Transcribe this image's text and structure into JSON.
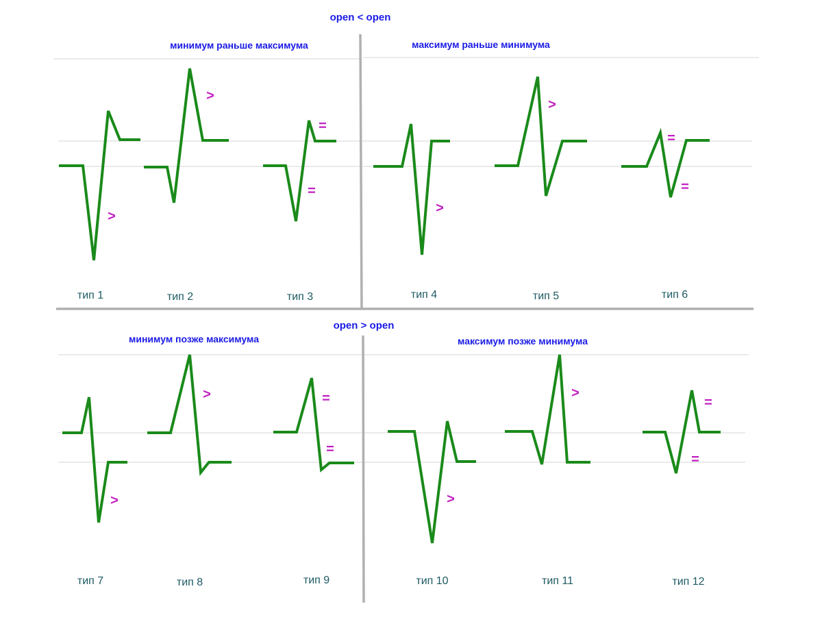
{
  "headers": {
    "top": "open < open",
    "bottom": "open > open"
  },
  "quadrants": {
    "top_left": "минимум раньше максимума",
    "top_right": "максимум раньше минимума",
    "bottom_left": "минимум позже максимума",
    "bottom_right": "максимум позже  минимума"
  },
  "types": [
    {
      "label": "тип 1",
      "marks": [
        ">"
      ]
    },
    {
      "label": "тип 2",
      "marks": [
        ">"
      ]
    },
    {
      "label": "тип 3",
      "marks": [
        "=",
        "="
      ]
    },
    {
      "label": "тип 4",
      "marks": [
        ">"
      ]
    },
    {
      "label": "тип 5",
      "marks": [
        ">"
      ]
    },
    {
      "label": "тип 6",
      "marks": [
        "=",
        "="
      ]
    },
    {
      "label": "тип 7",
      "marks": [
        ">"
      ]
    },
    {
      "label": "тип 8",
      "marks": [
        ">"
      ]
    },
    {
      "label": "тип 9",
      "marks": [
        "=",
        "="
      ]
    },
    {
      "label": "тип 10",
      "marks": [
        ">"
      ]
    },
    {
      "label": "тип 11",
      "marks": [
        ">"
      ]
    },
    {
      "label": "тип 12",
      "marks": [
        "=",
        "="
      ]
    }
  ],
  "colors": {
    "header_text": "#1a1ae6",
    "type_label": "#1d5a63",
    "comparison_mark": "#c21fc2",
    "waveform": "#1a8a1a",
    "divider": "#b0b0b0",
    "reference_line": "#dedede"
  }
}
